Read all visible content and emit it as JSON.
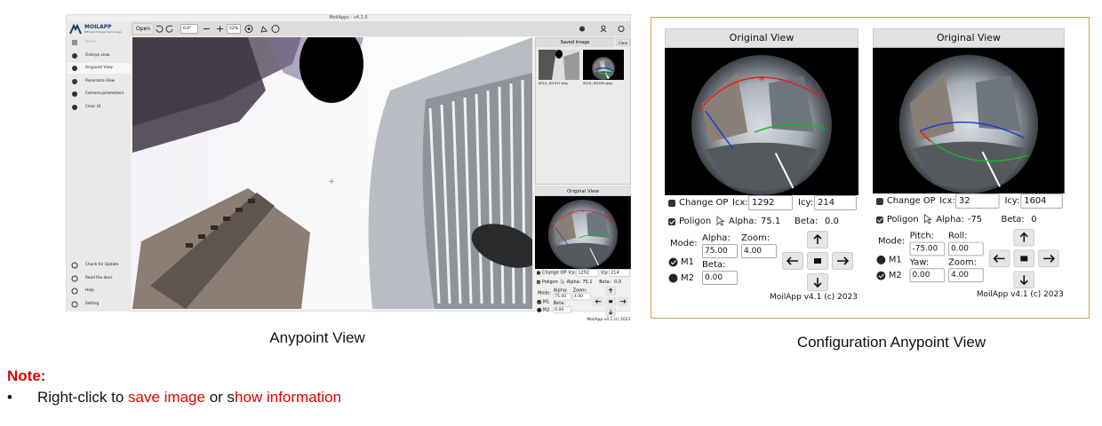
{
  "app_window": {
    "title": "MoilApps - v4.1.0",
    "brand": "MOILAPP",
    "brand_tagline": "Efficient Fisheye Technology",
    "toolbar": {
      "open": "Open",
      "rotation": "0.0°",
      "zoom": "52%"
    },
    "sidebar": {
      "top": [
        "Home",
        "Fisheye view",
        "Anypoint View",
        "Panorama View",
        "Camera parameters",
        "Clear UI"
      ],
      "bottom": [
        "Check for Update",
        "Read the docs",
        "Help",
        "Setting"
      ]
    },
    "saved_image": {
      "title": "Saved Image",
      "clear": "Clear",
      "files": [
        "0510_101527.png",
        "0510_101531.png"
      ]
    },
    "control_panel": {
      "title": "Original View",
      "change_op": "Change OP",
      "icx_label": "Icx:",
      "icx": "1292",
      "icy_label": "Icy:",
      "icy": "214",
      "poligon": "Poligon",
      "alpha_label": "Alpha:",
      "alpha": "75.1",
      "beta_label": "Beta:",
      "beta": "0.0",
      "mode": "Mode:",
      "params": [
        {
          "label": "Alpha:",
          "value": "75.00"
        },
        {
          "label": "Zoom:",
          "value": "4.00"
        },
        {
          "label": "Beta:",
          "value": "0.00"
        }
      ],
      "m1": "M1",
      "m2": "M2",
      "footer": "MoilApp v4.1 (c) 2023"
    }
  },
  "caption_left": "Anypoint View",
  "config_panels": [
    {
      "title": "Original View",
      "change_op": "Change OP",
      "icx_label": "Icx:",
      "icx": "1292",
      "icy_label": "Icy:",
      "icy": "214",
      "poligon": "Poligon",
      "alpha_label": "Alpha:",
      "alpha": "75.1",
      "beta_label": "Beta:",
      "beta": "0.0",
      "mode": "Mode:",
      "params": [
        {
          "label": "Alpha:",
          "value": "75.00"
        },
        {
          "label": "Zoom:",
          "value": "4.00"
        },
        {
          "label": "Beta:",
          "value": "0.00"
        }
      ],
      "m1": "M1",
      "m2": "M2",
      "footer": "MoilApp v4.1 (c) 2023"
    },
    {
      "title": "Original View",
      "change_op": "Change OP",
      "icx_label": "Icx:",
      "icx": "32",
      "icy_label": "Icy:",
      "icy": "1604",
      "poligon": "Poligon",
      "alpha_label": "Alpha:",
      "alpha": "-75",
      "beta_label": "Beta:",
      "beta": "0",
      "mode": "Mode:",
      "params": [
        {
          "label": "Pitch:",
          "value": "-75.00"
        },
        {
          "label": "Roll:",
          "value": "0.00"
        },
        {
          "label": "Yaw:",
          "value": "0.00"
        },
        {
          "label": "Zoom:",
          "value": "4.00"
        }
      ],
      "m1": "M1",
      "m2": "M2",
      "footer": "MoilApp v4.1 (c) 2023"
    }
  ],
  "caption_right": "Configuration Anypoint View",
  "note": {
    "title": "Note:",
    "bullet": [
      "Right-click to ",
      "save image",
      " or s",
      "how information"
    ]
  }
}
